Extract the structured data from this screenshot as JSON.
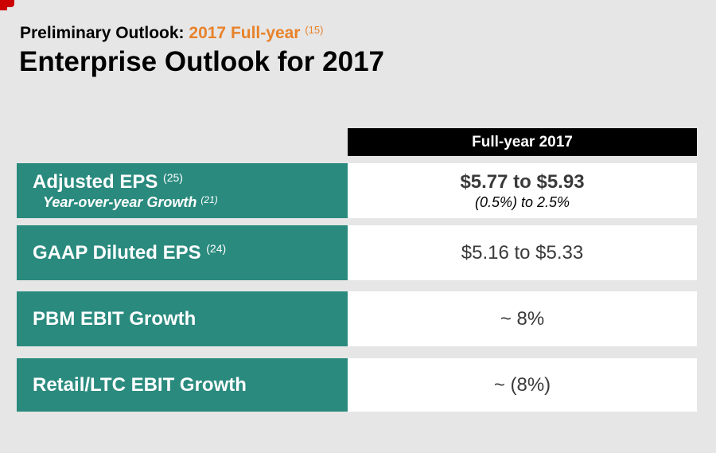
{
  "header": {
    "subtitle_prefix": "Preliminary Outlook:",
    "subtitle_accent": "2017 Full-year",
    "subtitle_footnote": "(15)",
    "title": "Enterprise Outlook for 2017"
  },
  "table": {
    "column_header": "Full-year 2017",
    "rows": [
      {
        "label": "Adjusted EPS",
        "label_footnote": "(25)",
        "sublabel": "Year-over-year Growth",
        "sublabel_footnote": "(21)",
        "value": "$5.77 to $5.93",
        "subvalue": "(0.5%) to 2.5%"
      },
      {
        "label": "GAAP Diluted EPS",
        "label_footnote": "(24)",
        "value": "$5.16 to $5.33"
      },
      {
        "label": "PBM EBIT Growth",
        "value": "~ 8%"
      },
      {
        "label": "Retail/LTC EBIT Growth",
        "value": "~ (8%)"
      }
    ]
  },
  "colors": {
    "accent_orange": "#e8822a",
    "teal": "#2a8a7e",
    "brand_red": "#cc0000",
    "background": "#e6e6e6"
  }
}
